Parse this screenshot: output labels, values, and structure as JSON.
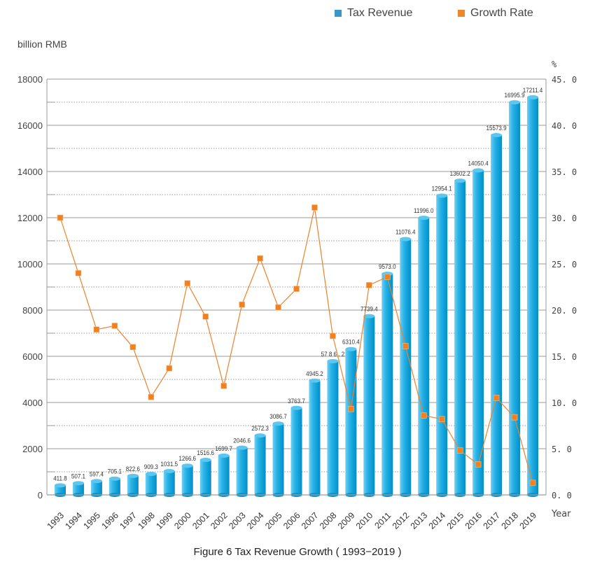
{
  "chart_data": {
    "type": "bar",
    "title": "Figure 6   Tax Revenue Growth ( 1993−2019 )",
    "xlabel": "Year",
    "ylabel": "billion RMB",
    "y2label": "%",
    "categories": [
      "1993",
      "1994",
      "1995",
      "1996",
      "1997",
      "1998",
      "1999",
      "2000",
      "2001",
      "2002",
      "2003",
      "2004",
      "2005",
      "2006",
      "2007",
      "2008",
      "2009",
      "2010",
      "2011",
      "2012",
      "2013",
      "2014",
      "2015",
      "2016",
      "2017",
      "2018",
      "2019"
    ],
    "series": [
      {
        "name": "Tax Revenue",
        "type": "bar",
        "axis": "left",
        "color": "#1aa3dc",
        "values": [
          411.8,
          507.1,
          597.4,
          705.1,
          822.6,
          909.3,
          1031.5,
          1266.6,
          1516.6,
          1699.7,
          2046.6,
          2572.3,
          3086.7,
          3763.7,
          4945.2,
          5786.2,
          6310.4,
          7739.4,
          9573.0,
          11076.4,
          11996.0,
          12954.1,
          13602.2,
          14050.4,
          15573.9,
          16995.9,
          17211.4
        ],
        "labels": [
          "411.8",
          "507.1",
          "597.4",
          "705.1",
          "822.6",
          "909.3",
          "1031.5",
          "1266.6",
          "1516.6",
          "1699.7",
          "2046.6",
          "2572.3",
          "3086.7",
          "3763.7",
          "4945.2",
          "57 8 6 . 2",
          "6310.4",
          "7739.4",
          "9573.0",
          "11076.4",
          "11996.0",
          "12954.1",
          "13602.2",
          "14050.4",
          "15573.9",
          "16995.9",
          "17211.4"
        ]
      },
      {
        "name": "Growth Rate",
        "type": "line",
        "axis": "right",
        "color": "#f0802a",
        "values": [
          30.0,
          24.0,
          17.9,
          18.3,
          16.0,
          10.6,
          13.7,
          22.9,
          19.3,
          11.8,
          20.6,
          25.6,
          20.3,
          22.3,
          31.1,
          17.2,
          9.3,
          22.7,
          23.6,
          16.1,
          8.6,
          8.2,
          4.8,
          3.3,
          10.5,
          8.4,
          1.3
        ]
      }
    ],
    "ylim": [
      0,
      18000
    ],
    "y2lim": [
      0,
      45
    ],
    "yticks": [
      "0",
      "2000",
      "4000",
      "6000",
      "8000",
      "10000",
      "12000",
      "14000",
      "16000",
      "18000"
    ],
    "y2ticks": [
      "0. 0",
      "5. 0",
      "10. 0",
      "15. 0",
      "20. 0",
      "25. 0",
      "30. 0",
      "35. 0",
      "40. 0",
      "45. 0"
    ],
    "grid": true,
    "legend": {
      "position": "top-right",
      "items": [
        {
          "label": "Tax Revenue",
          "color": "#3a96c8"
        },
        {
          "label": "Growth Rate",
          "color": "#f0862a"
        }
      ]
    }
  }
}
